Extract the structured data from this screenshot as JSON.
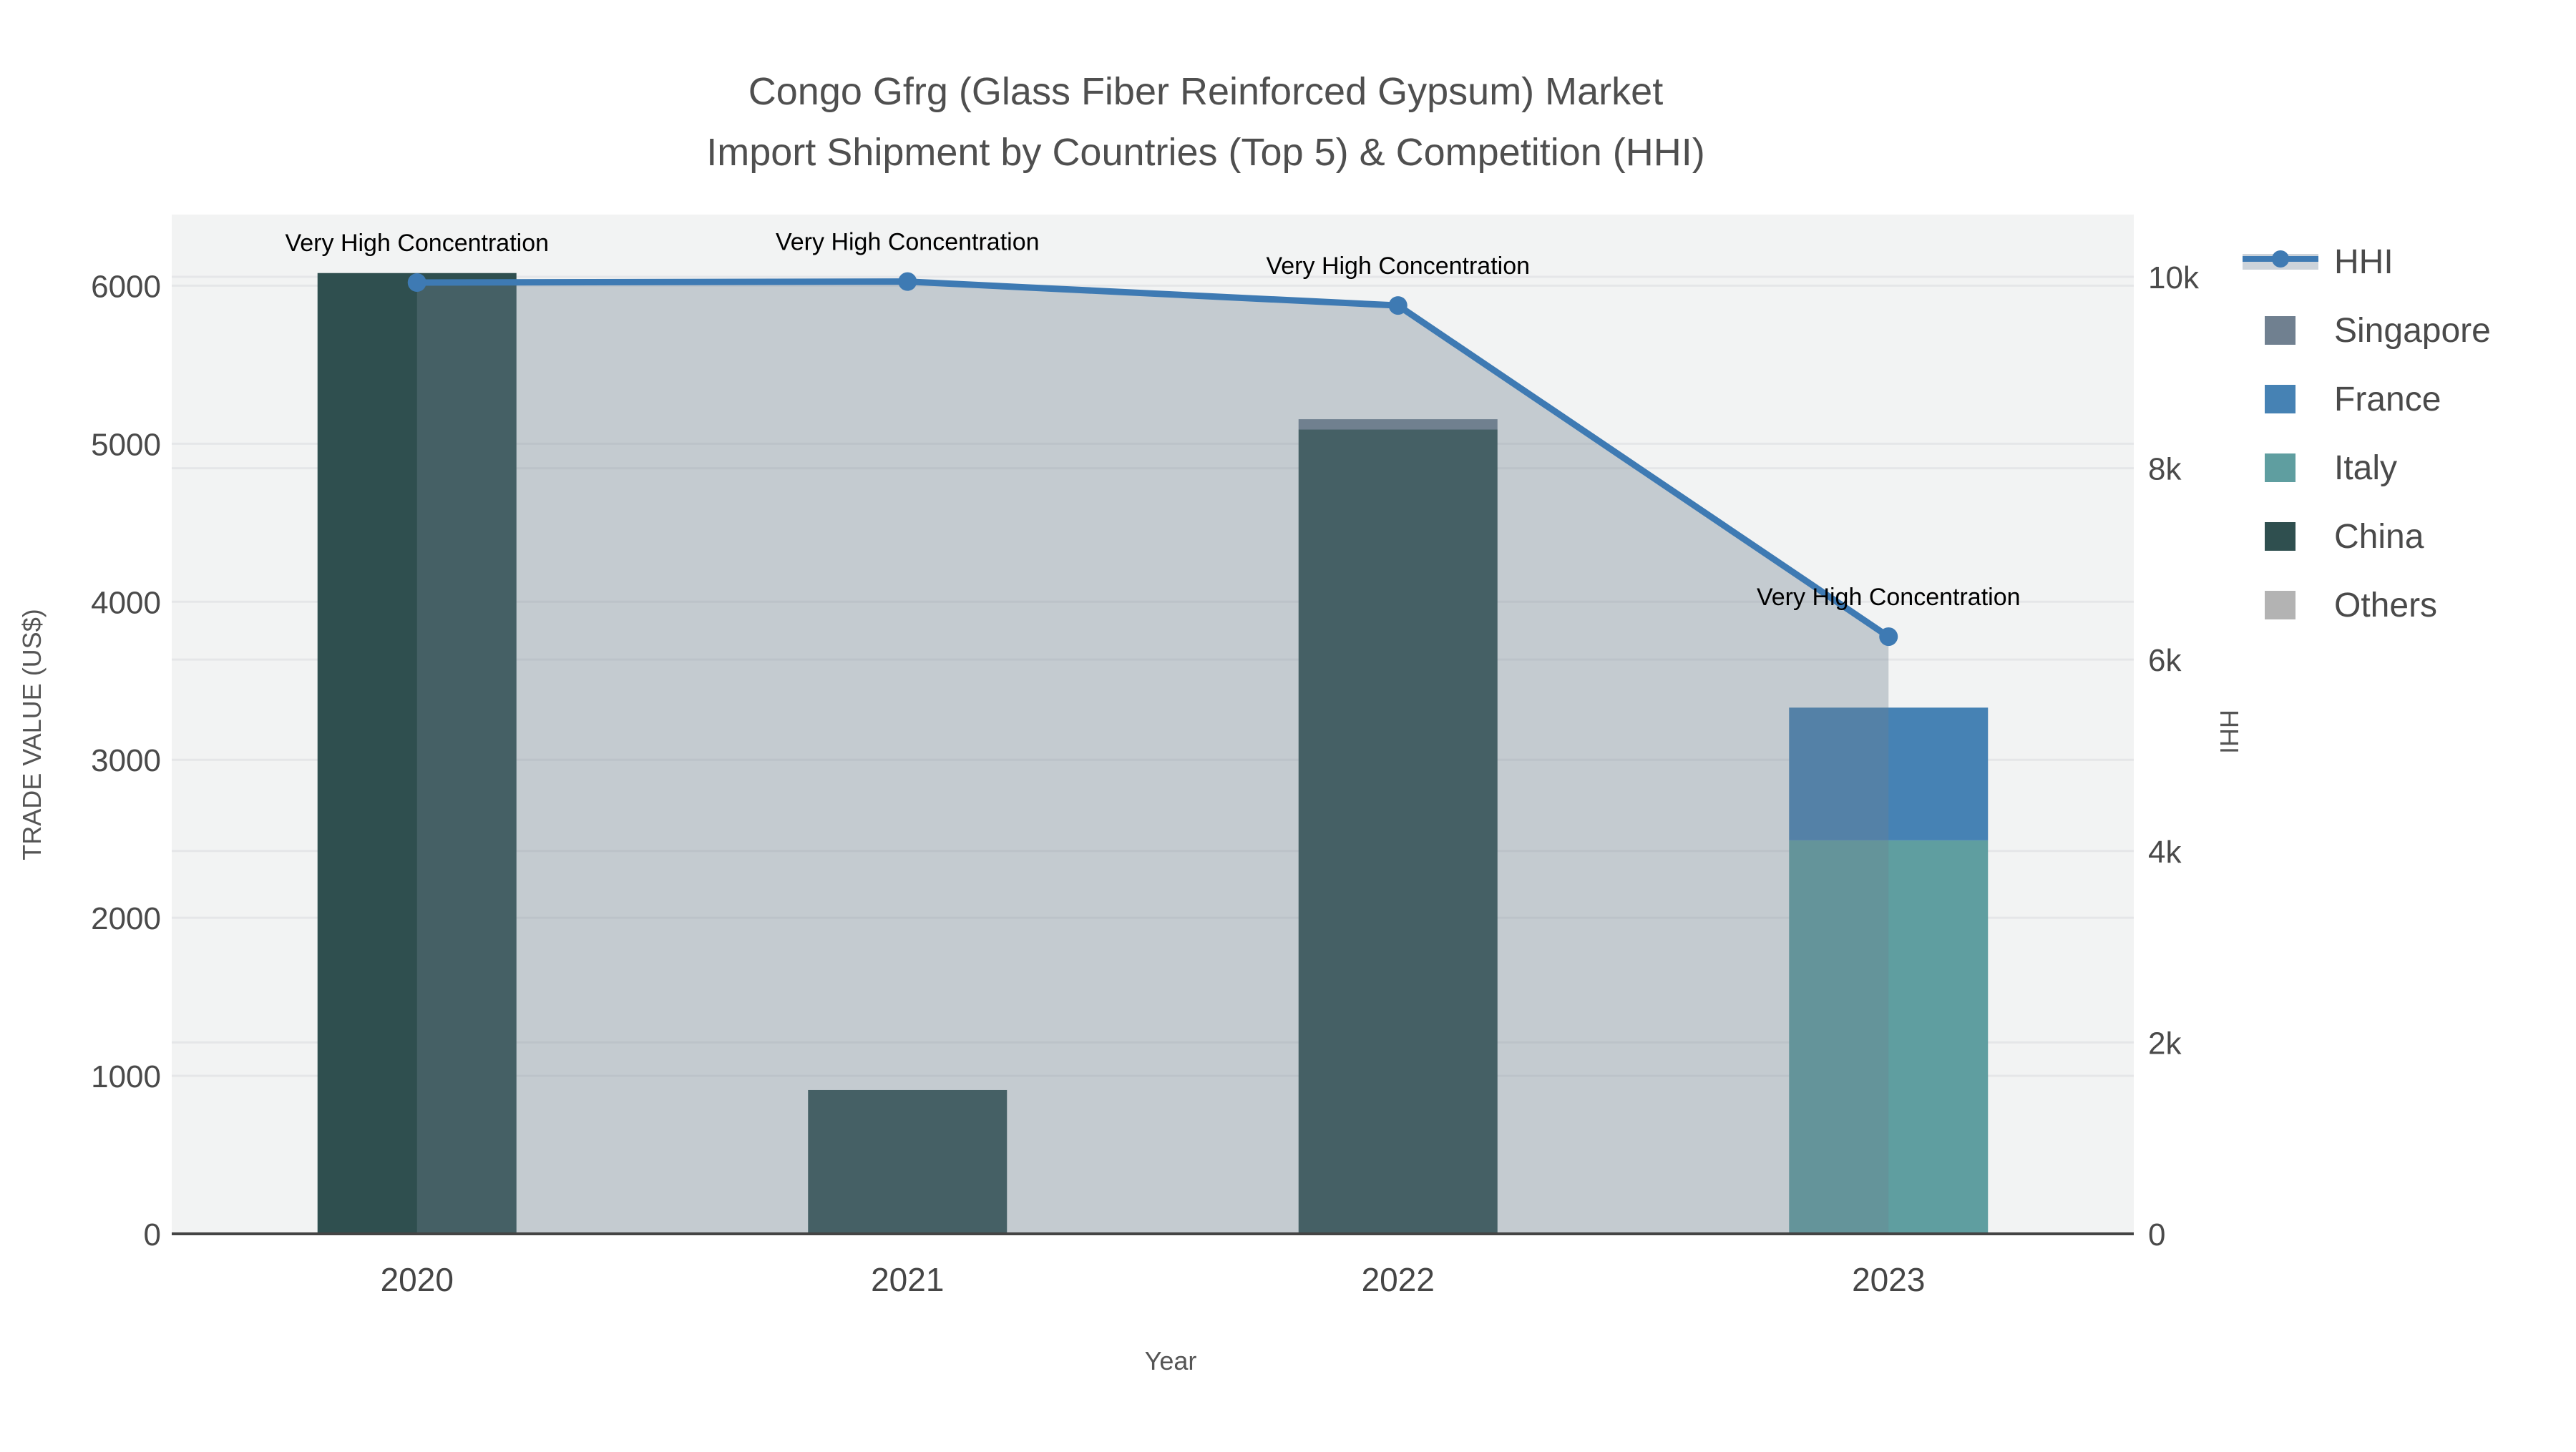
{
  "title": {
    "line1": "Congo Gfrg (Glass Fiber Reinforced Gypsum) Market",
    "line2": "Import Shipment by Countries (Top 5) & Competition (HHI)"
  },
  "axes": {
    "left": {
      "title": "TRADE VALUE (US$)",
      "tick_labels": [
        "0",
        "1000",
        "2000",
        "3000",
        "4000",
        "5000",
        "6000"
      ],
      "tick_values": [
        0,
        1000,
        2000,
        3000,
        4000,
        5000,
        6000
      ],
      "max": 6450
    },
    "right": {
      "title": "HHI",
      "tick_labels": [
        "0",
        "2k",
        "4k",
        "6k",
        "8k",
        "10k"
      ],
      "tick_values": [
        0,
        2000,
        4000,
        6000,
        8000,
        10000
      ],
      "max": 10650
    },
    "x": {
      "title": "Year",
      "categories": [
        "2020",
        "2021",
        "2022",
        "2023"
      ]
    }
  },
  "legend": {
    "items": [
      {
        "label": "HHI",
        "type": "line-area",
        "color": "#3E7AB3",
        "band_color": "#ccd3da"
      },
      {
        "label": "Singapore",
        "type": "swatch",
        "color": "#708090"
      },
      {
        "label": "France",
        "type": "swatch",
        "color": "#4682B4"
      },
      {
        "label": "Italy",
        "type": "swatch",
        "color": "#5F9EA0"
      },
      {
        "label": "China",
        "type": "swatch",
        "color": "#2F4F4F"
      },
      {
        "label": "Others",
        "type": "swatch",
        "color": "#B3B3B3"
      }
    ]
  },
  "annotations": {
    "label": "Very High Concentration",
    "per_year": [
      "Very High Concentration",
      "Very High Concentration",
      "Very High Concentration",
      "Very High Concentration"
    ]
  },
  "colors": {
    "plot_bg": "#f2f3f3",
    "grid": "#e5e6e8",
    "axis_line": "#444444",
    "hhi_line": "#3E7AB3",
    "hhi_area_fill": "rgba(112,128,144,0.35)",
    "title_text": "#4f4f4f"
  },
  "chart_data": [
    {
      "type": "bar",
      "stacked": true,
      "title": "Congo Gfrg (Glass Fiber Reinforced Gypsum) Market Import Shipment by Countries (Top 5) & Competition (HHI)",
      "xlabel": "Year",
      "ylabel": "TRADE VALUE (US$)",
      "ylim": [
        0,
        6450
      ],
      "grid": true,
      "legend_position": "right",
      "categories": [
        2020,
        2021,
        2022,
        2023
      ],
      "stack_order_bottom_to_top": [
        "Others",
        "China",
        "Italy",
        "France",
        "Singapore"
      ],
      "series": [
        {
          "name": "Singapore",
          "color": "#708090",
          "values": [
            0,
            0,
            65,
            0
          ]
        },
        {
          "name": "France",
          "color": "#4682B4",
          "values": [
            0,
            0,
            0,
            840
          ]
        },
        {
          "name": "Italy",
          "color": "#5F9EA0",
          "values": [
            0,
            0,
            0,
            2490
          ]
        },
        {
          "name": "China",
          "color": "#2F4F4F",
          "values": [
            6080,
            910,
            5090,
            0
          ]
        },
        {
          "name": "Others",
          "color": "#B3B3B3",
          "values": [
            0,
            0,
            0,
            0
          ]
        }
      ]
    },
    {
      "type": "line",
      "name": "HHI",
      "ylabel": "HHI",
      "ylim": [
        0,
        10650
      ],
      "x": [
        2020,
        2021,
        2022,
        2023
      ],
      "values": [
        9940,
        9950,
        9700,
        6240
      ],
      "markers": true,
      "area_fill": true,
      "color": "#3E7AB3",
      "annotations": [
        "Very High Concentration",
        "Very High Concentration",
        "Very High Concentration",
        "Very High Concentration"
      ]
    }
  ]
}
